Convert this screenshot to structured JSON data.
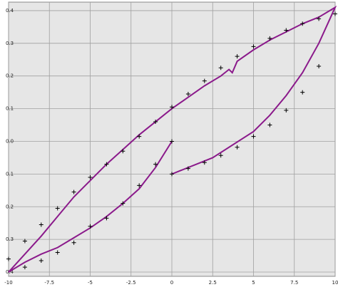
{
  "chart_data": {
    "type": "line",
    "xlim": [
      -10,
      10
    ],
    "ylim": [
      -0.413,
      0.426
    ],
    "xticks": [
      -10,
      -7.5,
      -5,
      -2.5,
      0,
      2.5,
      5,
      7.5,
      10
    ],
    "yticks": [
      0.4,
      0.3,
      0.2,
      0.1,
      {
        "value": 0,
        "label": "0.0"
      },
      {
        "value": -0.1,
        "label": "0.1"
      },
      {
        "value": -0.2,
        "label": "0.2"
      },
      {
        "value": -0.3,
        "label": "0.3"
      },
      {
        "value": -0.4,
        "label": "0.4"
      }
    ],
    "grid": true,
    "series": [
      {
        "color": "#8b1a8b",
        "marker": "none",
        "x": [
          0,
          2.5,
          5,
          6,
          7,
          8,
          9,
          10,
          9,
          8,
          7,
          6,
          5,
          4,
          3.7,
          3.5,
          3,
          2,
          1,
          0,
          -1,
          -2,
          -3,
          -4,
          -5,
          -6,
          -7,
          -8,
          -9,
          -10,
          -9,
          -8,
          -7,
          -6,
          -5,
          -4,
          -3,
          -2,
          -1,
          0
        ],
        "values": [
          -0.1,
          -0.05,
          0.03,
          0.08,
          0.14,
          0.21,
          0.3,
          0.41,
          0.38,
          0.36,
          0.335,
          0.31,
          0.28,
          0.245,
          0.21,
          0.22,
          0.2,
          0.17,
          0.135,
          0.1,
          0.06,
          0.02,
          -0.025,
          -0.07,
          -0.12,
          -0.17,
          -0.23,
          -0.29,
          -0.345,
          -0.4,
          -0.37,
          -0.345,
          -0.325,
          -0.295,
          -0.265,
          -0.23,
          -0.19,
          -0.145,
          -0.08,
          0
        ]
      },
      {
        "color": "#000000",
        "marker": "plus",
        "x": [
          0,
          1,
          2,
          3,
          4,
          5,
          6,
          7,
          8,
          9,
          10,
          9,
          8,
          7,
          6,
          5,
          4,
          3,
          2,
          1,
          0,
          -1,
          -2,
          -3,
          -4,
          -5,
          -6,
          -7,
          -8,
          -9,
          -10,
          -9,
          -8,
          -7,
          -6,
          -5,
          -4,
          -3,
          -2,
          -1,
          0
        ],
        "values": [
          -0.1,
          -0.083,
          -0.065,
          -0.043,
          -0.018,
          0.015,
          0.05,
          0.095,
          0.15,
          0.23,
          0.39,
          0.375,
          0.36,
          0.34,
          0.315,
          0.29,
          0.26,
          0.225,
          0.185,
          0.145,
          0.105,
          0.06,
          0.015,
          -0.03,
          -0.07,
          -0.11,
          -0.155,
          -0.205,
          -0.255,
          -0.305,
          -0.36,
          -0.385,
          -0.365,
          -0.34,
          -0.31,
          -0.26,
          -0.235,
          -0.19,
          -0.135,
          -0.07,
          0
        ]
      }
    ]
  }
}
